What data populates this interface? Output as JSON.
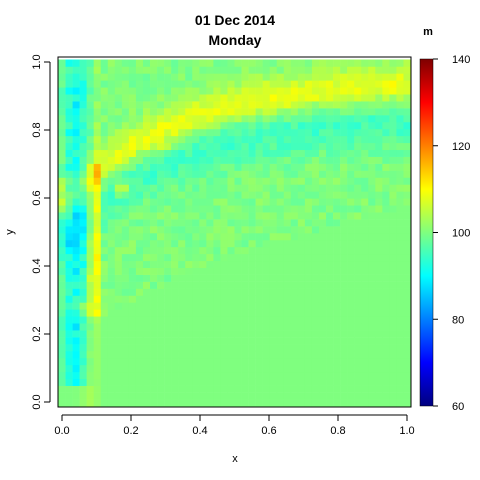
{
  "chart_data": {
    "type": "heatmap",
    "title": "01 Dec 2014",
    "subtitle": "Monday",
    "xlabel": "x",
    "ylabel": "y",
    "xlim": [
      0.0,
      1.0
    ],
    "ylim": [
      0.0,
      1.0
    ],
    "x_ticks": [
      "0.0",
      "0.2",
      "0.4",
      "0.6",
      "0.8",
      "1.0"
    ],
    "y_ticks": [
      "0.0",
      "0.2",
      "0.4",
      "0.6",
      "0.8",
      "1.0"
    ],
    "x_tick_values": [
      0.0,
      0.2,
      0.4,
      0.6,
      0.8,
      1.0
    ],
    "y_tick_values": [
      0.0,
      0.2,
      0.4,
      0.6,
      0.8,
      1.0
    ],
    "colorbar": {
      "label": "m",
      "range": [
        60,
        140
      ],
      "ticks": [
        "60",
        "80",
        "100",
        "120",
        "140"
      ],
      "tick_values": [
        60,
        80,
        100,
        120,
        140
      ],
      "colormap": [
        "#00007F",
        "#0000FF",
        "#007FFF",
        "#00FFFF",
        "#7FFF7F",
        "#FFFF00",
        "#FF7F00",
        "#FF0000",
        "#7F0000"
      ]
    },
    "grid": {
      "nx": 50,
      "ny": 50,
      "background_value": 100,
      "description_of_field": "Values near 100 in the lower-right region; a band of elevated values (about 103-110) arcing from the upper-right toward the lower-left near x=0.1, with a small maximum near (0.18, 0.63) of about 118 and a secondary spot near (0.06, 0.27) of about 114; lower values (about 88-95) along x≈0.02-0.08 and a depressed band just below the elevated arc."
    },
    "features": [
      {
        "x": 0.18,
        "y": 0.63,
        "value": 118
      },
      {
        "x": 0.06,
        "y": 0.27,
        "value": 114
      },
      {
        "x": 0.1,
        "y": 0.57,
        "value": 110
      },
      {
        "x": 0.3,
        "y": 0.75,
        "value": 108
      },
      {
        "x": 0.6,
        "y": 0.84,
        "value": 107
      },
      {
        "x": 0.95,
        "y": 0.93,
        "value": 104
      },
      {
        "x": 0.04,
        "y": 0.6,
        "value": 88
      },
      {
        "x": 0.04,
        "y": 0.25,
        "value": 88
      }
    ]
  }
}
